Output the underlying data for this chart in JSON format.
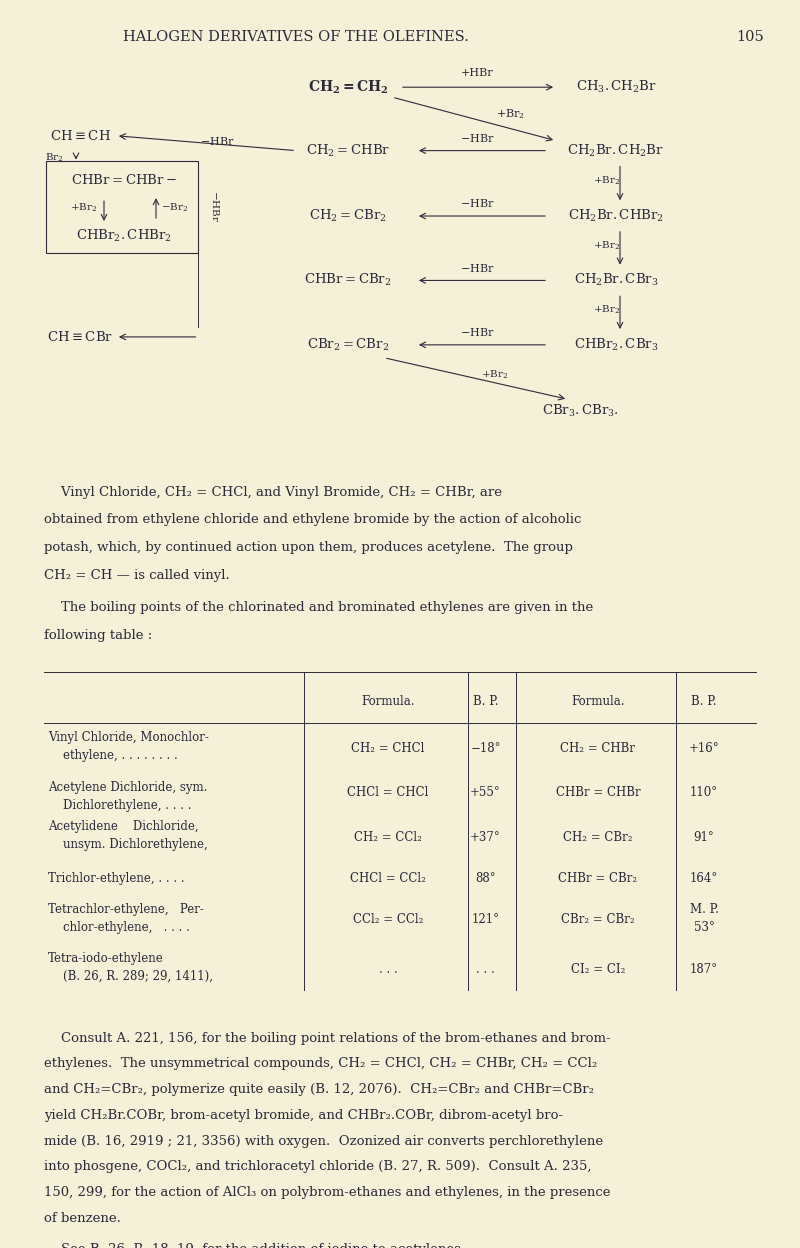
{
  "background_color": "#f5f0d8",
  "title": "HALOGEN DERIVATIVES OF THE OLEFINES.",
  "page_number": "105",
  "text_color": "#2a2a3a",
  "table_rows": [
    {
      "name": "Vinyl Chloride, Monochlor-\n    ethylene, . . . . . . . .",
      "formula_cl": "CH₂ = CHCl",
      "bp_cl": "−18°",
      "formula_br": "CH₂ = CHBr",
      "bp_br": "+16°"
    },
    {
      "name": "Acetylene Dichloride, sym.\n    Dichlorethylene, . . . .",
      "formula_cl": "CHCl = CHCl",
      "bp_cl": "+55°",
      "formula_br": "CHBr = CHBr",
      "bp_br": "110°"
    },
    {
      "name": "Acetylidene    Dichloride,\n    unsym. Dichlorethylene,",
      "formula_cl": "CH₂ = CCl₂",
      "bp_cl": "+37°",
      "formula_br": "CH₂ = CBr₂",
      "bp_br": "91°"
    },
    {
      "name": "Trichlor-ethylene, . . . .",
      "formula_cl": "CHCl = CCl₂",
      "bp_cl": "88°",
      "formula_br": "CHBr = CBr₂",
      "bp_br": "164°"
    },
    {
      "name": "Tetrachlor-ethylene,   Per-\n    chlor-ethylene,   . . . .",
      "formula_cl": "CCl₂ = CCl₂",
      "bp_cl": "121°",
      "formula_br": "CBr₂ = CBr₂",
      "bp_br": "M. P.\n53°"
    },
    {
      "name": "Tetra-iodo-ethylene\n    (B. 26, R. 289; 29, 1411),",
      "formula_cl": ". . .",
      "bp_cl": ". . .",
      "formula_br": "CI₂ = CI₂",
      "bp_br": "187°"
    }
  ]
}
